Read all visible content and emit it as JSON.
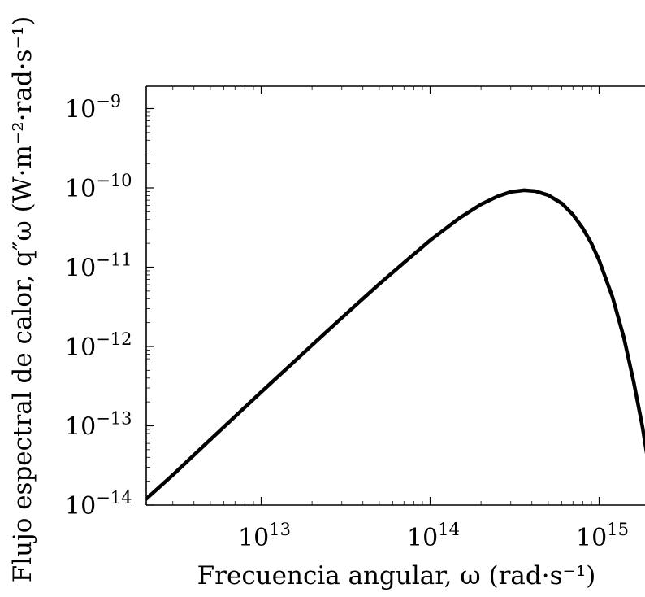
{
  "chart_data": {
    "type": "line",
    "title": "",
    "xlabel": "Frecuencia angular, ω (rad·s⁻¹)",
    "ylabel": "Flujo espectral de calor, q″ω (W·m⁻²·rad·s⁻¹)",
    "xscale": "log",
    "yscale": "log",
    "xlim": [
      1900000000000.0,
      2000000000000000.0
    ],
    "ylim": [
      1e-14,
      1e-08
    ],
    "xticks": [
      {
        "base": "10",
        "exp": "13",
        "value": 10000000000000.0
      },
      {
        "base": "10",
        "exp": "14",
        "value": 100000000000000.0
      },
      {
        "base": "10",
        "exp": "15",
        "value": 1000000000000000.0
      }
    ],
    "yticks": [
      {
        "base": "10",
        "exp": "−14",
        "value": 1e-14
      },
      {
        "base": "10",
        "exp": "−13",
        "value": 1e-13
      },
      {
        "base": "10",
        "exp": "−12",
        "value": 1e-12
      },
      {
        "base": "10",
        "exp": "−11",
        "value": 1e-11
      },
      {
        "base": "10",
        "exp": "−10",
        "value": 1e-10
      },
      {
        "base": "10",
        "exp": "−9",
        "value": 1e-09
      }
    ],
    "grid": false,
    "legend": "none",
    "series": [
      {
        "color": "#000000",
        "x": [
          1900000000000.0,
          3000000000000.0,
          5000000000000.0,
          10000000000000.0,
          20000000000000.0,
          30000000000000.0,
          50000000000000.0,
          70000000000000.0,
          100000000000000.0,
          150000000000000.0,
          200000000000000.0,
          250000000000000.0,
          300000000000000.0,
          360000000000000.0,
          420000000000000.0,
          500000000000000.0,
          600000000000000.0,
          700000000000000.0,
          800000000000000.0,
          900000000000000.0,
          1000000000000000.0,
          1200000000000000.0,
          1400000000000000.0,
          1600000000000000.0,
          1800000000000000.0,
          2000000000000000.0
        ],
        "y": [
          1e-14,
          2.4e-14,
          6.7e-14,
          2.66e-13,
          1.04e-12,
          2.3e-12,
          6.14e-12,
          1.14e-11,
          2.18e-11,
          4.2e-11,
          6.2e-11,
          7.8e-11,
          8.9e-11,
          9.35e-11,
          9.1e-11,
          8.1e-11,
          6.4e-11,
          4.6e-11,
          3.1e-11,
          2e-11,
          1.22e-11,
          4.2e-12,
          1.3e-12,
          3.6e-13,
          1e-13,
          2.5e-14
        ]
      }
    ]
  }
}
